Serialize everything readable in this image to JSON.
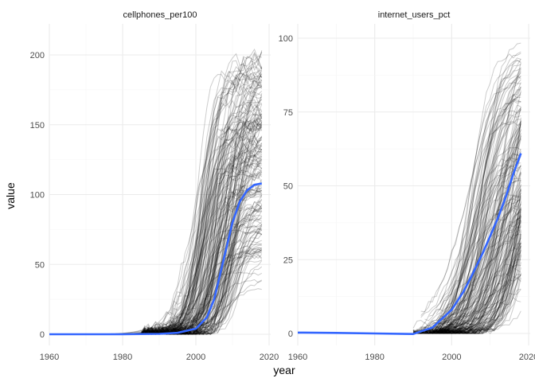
{
  "chart_data": [
    {
      "type": "line",
      "facet": "cellphones_per100",
      "xlim": [
        1960,
        2020
      ],
      "ylim": [
        0,
        210
      ],
      "x_ticks": [
        1960,
        1980,
        2000,
        2020
      ],
      "y_ticks": [
        0,
        50,
        100,
        150,
        200
      ],
      "grid": true,
      "series": [
        {
          "role": "individual-countries",
          "color": "#000000",
          "opacity": 0.2,
          "count": 180
        },
        {
          "role": "smooth-trend",
          "color": "#3366ff",
          "x": [
            1960,
            1970,
            1980,
            1990,
            1995,
            2000,
            2003,
            2005,
            2008,
            2010,
            2012,
            2014,
            2016,
            2018
          ],
          "values": [
            0,
            0,
            0,
            0.3,
            1,
            4,
            12,
            25,
            58,
            80,
            95,
            103,
            107,
            108
          ]
        }
      ]
    },
    {
      "type": "line",
      "facet": "internet_users_pct",
      "xlim": [
        1960,
        2020
      ],
      "ylim": [
        0,
        100
      ],
      "x_ticks": [
        1960,
        1980,
        2000,
        2020
      ],
      "y_ticks": [
        0,
        25,
        50,
        75,
        100
      ],
      "grid": true,
      "series": [
        {
          "role": "individual-countries",
          "color": "#000000",
          "opacity": 0.2,
          "count": 180
        },
        {
          "role": "smooth-trend",
          "color": "#3366ff",
          "x": [
            1960,
            1970,
            1980,
            1990,
            1995,
            2000,
            2003,
            2005,
            2008,
            2010,
            2012,
            2014,
            2016,
            2018
          ],
          "values": [
            0.3,
            0.2,
            0,
            -0.2,
            2,
            8,
            14,
            19,
            27,
            33,
            39,
            46,
            54,
            61
          ]
        }
      ]
    }
  ],
  "axes": {
    "xlabel": "year",
    "ylabel": "value"
  },
  "panels": [
    {
      "strip": "cellphones_per100",
      "y_tick_labels": [
        "0",
        "50",
        "100",
        "150",
        "200"
      ]
    },
    {
      "strip": "internet_users_pct",
      "y_tick_labels": [
        "0",
        "25",
        "50",
        "75",
        "100"
      ]
    }
  ],
  "x_tick_labels": [
    "1960",
    "1980",
    "2000",
    "2020"
  ]
}
